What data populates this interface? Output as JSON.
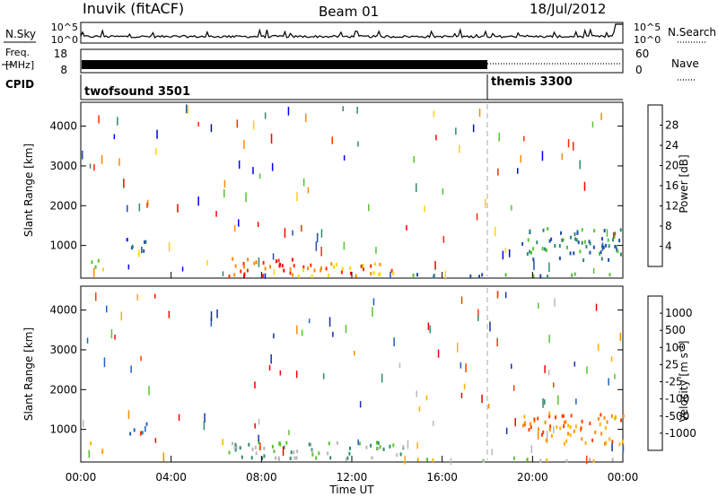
{
  "header": {
    "station": "Inuvik (fitACF)",
    "beam": "Beam 01",
    "date": "18/Jul/2012"
  },
  "noise_panel": {
    "left_label": "N.Sky",
    "right_label": "N.Search",
    "left_ticks": [
      "10^5",
      "10^0"
    ],
    "right_ticks": [
      "10^5",
      "10^0"
    ]
  },
  "freq_panel": {
    "left_label_1": "Freq.",
    "left_label_2": "[MHz]",
    "left_ticks": [
      "18",
      "8"
    ],
    "right_ticks": [
      "60",
      "0"
    ],
    "right_label": "Nave"
  },
  "cpid_panel": {
    "label": "CPID",
    "program_1": "twofsound 3501",
    "program_2": "themis 3300",
    "program_change_hour": 18.0
  },
  "chart_data": [
    {
      "type": "heatmap",
      "quantity": "Power",
      "ylabel": "Slant Range [km]",
      "xlabel": "",
      "xlim_hours": [
        0,
        24
      ],
      "ylim_km": [
        180,
        4600
      ],
      "yticks": [
        "1000",
        "2000",
        "3000",
        "4000"
      ],
      "colorbar_label": "Power [dB]",
      "colorbar_ticks": [
        "4",
        "8",
        "12",
        "16",
        "20",
        "24",
        "28"
      ],
      "colorbar_range": [
        0,
        32
      ],
      "colors": [
        "#0000ff",
        "#1f4faa",
        "#2e8a6a",
        "#55c42e",
        "#ffd400",
        "#ff8c00",
        "#ff2a00",
        "#ff0000"
      ],
      "echo_regions": [
        {
          "t0": 0.4,
          "t1": 1.0,
          "r0": 350,
          "r1": 750,
          "level": 3
        },
        {
          "t0": 1.9,
          "t1": 2.9,
          "r0": 800,
          "r1": 1150,
          "level": 1
        },
        {
          "t0": 6.5,
          "t1": 9.6,
          "r0": 200,
          "r1": 700,
          "level": 6
        },
        {
          "t0": 9.6,
          "t1": 14.5,
          "r0": 200,
          "r1": 550,
          "level": 5
        },
        {
          "t0": 14.5,
          "t1": 24.0,
          "r0": 180,
          "r1": 260,
          "level": 2
        },
        {
          "t0": 19.5,
          "t1": 24.0,
          "r0": 600,
          "r1": 1400,
          "level": 2
        }
      ]
    },
    {
      "type": "heatmap",
      "quantity": "Velocity",
      "ylabel": "Slant Range [km]",
      "xlabel": "Time UT",
      "xlim_hours": [
        0,
        24
      ],
      "ylim_km": [
        180,
        4600
      ],
      "yticks": [
        "1000",
        "2000",
        "3000",
        "4000"
      ],
      "xticks": [
        "00:00",
        "04:00",
        "08:00",
        "12:00",
        "16:00",
        "20:00",
        "00:00"
      ],
      "colorbar_label": "Velocity [m s^-1]",
      "colorbar_ticks": [
        "1000",
        "500",
        "100",
        "25",
        "-25",
        "-100",
        "-500",
        "-1000"
      ],
      "colors": [
        "#1a2ea8",
        "#2060c0",
        "#2e8a6a",
        "#55c42e",
        "#b8b8b8",
        "#ffb000",
        "#ff8c00",
        "#ff4000",
        "#ff0000"
      ],
      "echo_regions": [
        {
          "t0": 0.4,
          "t1": 1.0,
          "r0": 350,
          "r1": 650,
          "level": 6
        },
        {
          "t0": 1.9,
          "t1": 2.9,
          "r0": 850,
          "r1": 1150,
          "level": 2
        },
        {
          "t0": 6.5,
          "t1": 14.5,
          "r0": 200,
          "r1": 650,
          "level": 3
        },
        {
          "t0": 14.5,
          "t1": 24.0,
          "r0": 180,
          "r1": 260,
          "level": 4
        },
        {
          "t0": 19.5,
          "t1": 24.0,
          "r0": 600,
          "r1": 1400,
          "level": 6
        }
      ]
    }
  ]
}
